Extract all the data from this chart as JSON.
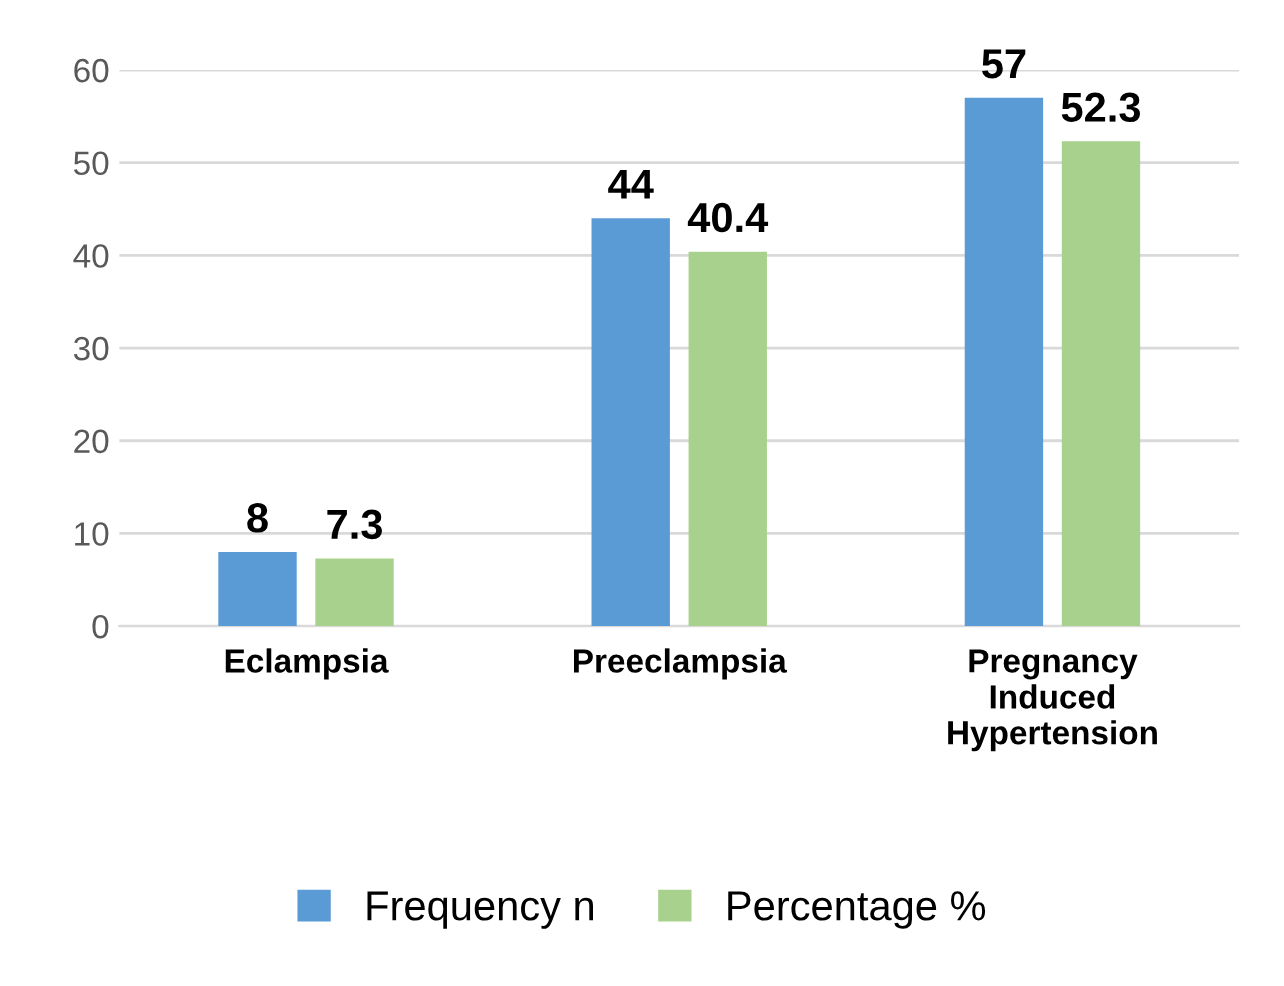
{
  "chart_data": {
    "type": "bar",
    "categories": [
      "Eclampsia",
      "Preeclampsia",
      "Pregnancy\nInduced\nHypertension"
    ],
    "series": [
      {
        "name": "Frequency n",
        "color": "#5b9bd5",
        "values": [
          8,
          44,
          57
        ]
      },
      {
        "name": "Percentage %",
        "color": "#a9d18e",
        "values": [
          7.3,
          40.4,
          52.3
        ]
      }
    ],
    "ylim": [
      0,
      60
    ],
    "yticks": [
      0,
      10,
      20,
      30,
      40,
      50,
      60
    ],
    "grid": "y",
    "legend": "bottom",
    "data_labels": true
  }
}
